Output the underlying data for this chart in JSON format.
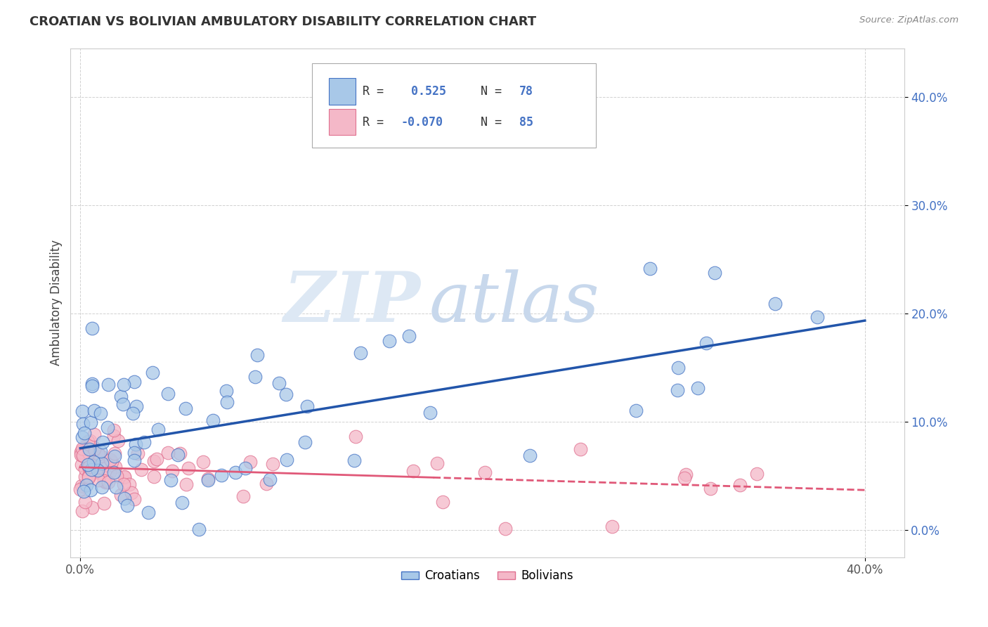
{
  "title": "CROATIAN VS BOLIVIAN AMBULATORY DISABILITY CORRELATION CHART",
  "source": "Source: ZipAtlas.com",
  "ylabel": "Ambulatory Disability",
  "xlim": [
    -0.005,
    0.42
  ],
  "ylim": [
    -0.025,
    0.445
  ],
  "xtick_positions": [
    0.0,
    0.4
  ],
  "xtick_labels": [
    "0.0%",
    "40.0%"
  ],
  "ytick_positions": [
    0.0,
    0.1,
    0.2,
    0.3,
    0.4
  ],
  "ytick_labels": [
    "0.0%",
    "10.0%",
    "20.0%",
    "30.0%",
    "40.0%"
  ],
  "croatian_color": "#a8c8e8",
  "bolivian_color": "#f4b8c8",
  "croatian_edge_color": "#4472c4",
  "bolivian_edge_color": "#e07090",
  "croatian_line_color": "#2255aa",
  "bolivian_line_color": "#e05878",
  "R_croatian": 0.525,
  "N_croatian": 78,
  "R_bolivian": -0.07,
  "N_bolivian": 85,
  "watermark_zip": "ZIP",
  "watermark_atlas": "atlas",
  "background_color": "#ffffff",
  "grid_color": "#cccccc",
  "legend_label_croatian": "Croatians",
  "legend_label_bolivian": "Bolivians",
  "title_color": "#333333",
  "axis_label_color": "#444444",
  "ytick_color": "#4472c4",
  "xtick_color": "#555555",
  "source_color": "#888888"
}
